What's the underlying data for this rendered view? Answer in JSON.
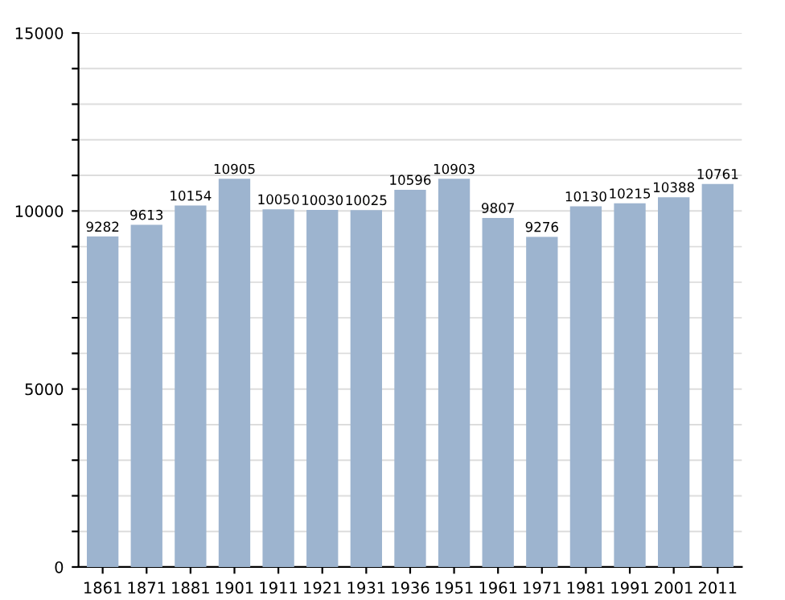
{
  "chart_data": {
    "type": "bar",
    "categories": [
      "1861",
      "1871",
      "1881",
      "1901",
      "1911",
      "1921",
      "1931",
      "1936",
      "1951",
      "1961",
      "1971",
      "1981",
      "1991",
      "2001",
      "2011"
    ],
    "values": [
      9282,
      9613,
      10154,
      10905,
      10050,
      10030,
      10025,
      10596,
      10903,
      9807,
      9276,
      10130,
      10215,
      10388,
      10761
    ],
    "color": "#9db4cf",
    "ylim": [
      0,
      15000
    ],
    "yticks": [
      0,
      {
        "value": 1000,
        "label": null
      },
      {
        "value": 2000,
        "label": null
      },
      {
        "value": 3000,
        "label": null
      },
      {
        "value": 4000,
        "label": null
      },
      5000,
      {
        "value": 6000,
        "label": null
      },
      {
        "value": 7000,
        "label": null
      },
      {
        "value": 8000,
        "label": null
      },
      {
        "value": 9000,
        "label": null
      },
      10000,
      {
        "value": 11000,
        "label": null
      },
      {
        "value": 12000,
        "label": null
      },
      {
        "value": 13000,
        "label": null
      },
      {
        "value": 14000,
        "label": null
      },
      15000
    ],
    "grid": "y",
    "data_labels": true
  }
}
